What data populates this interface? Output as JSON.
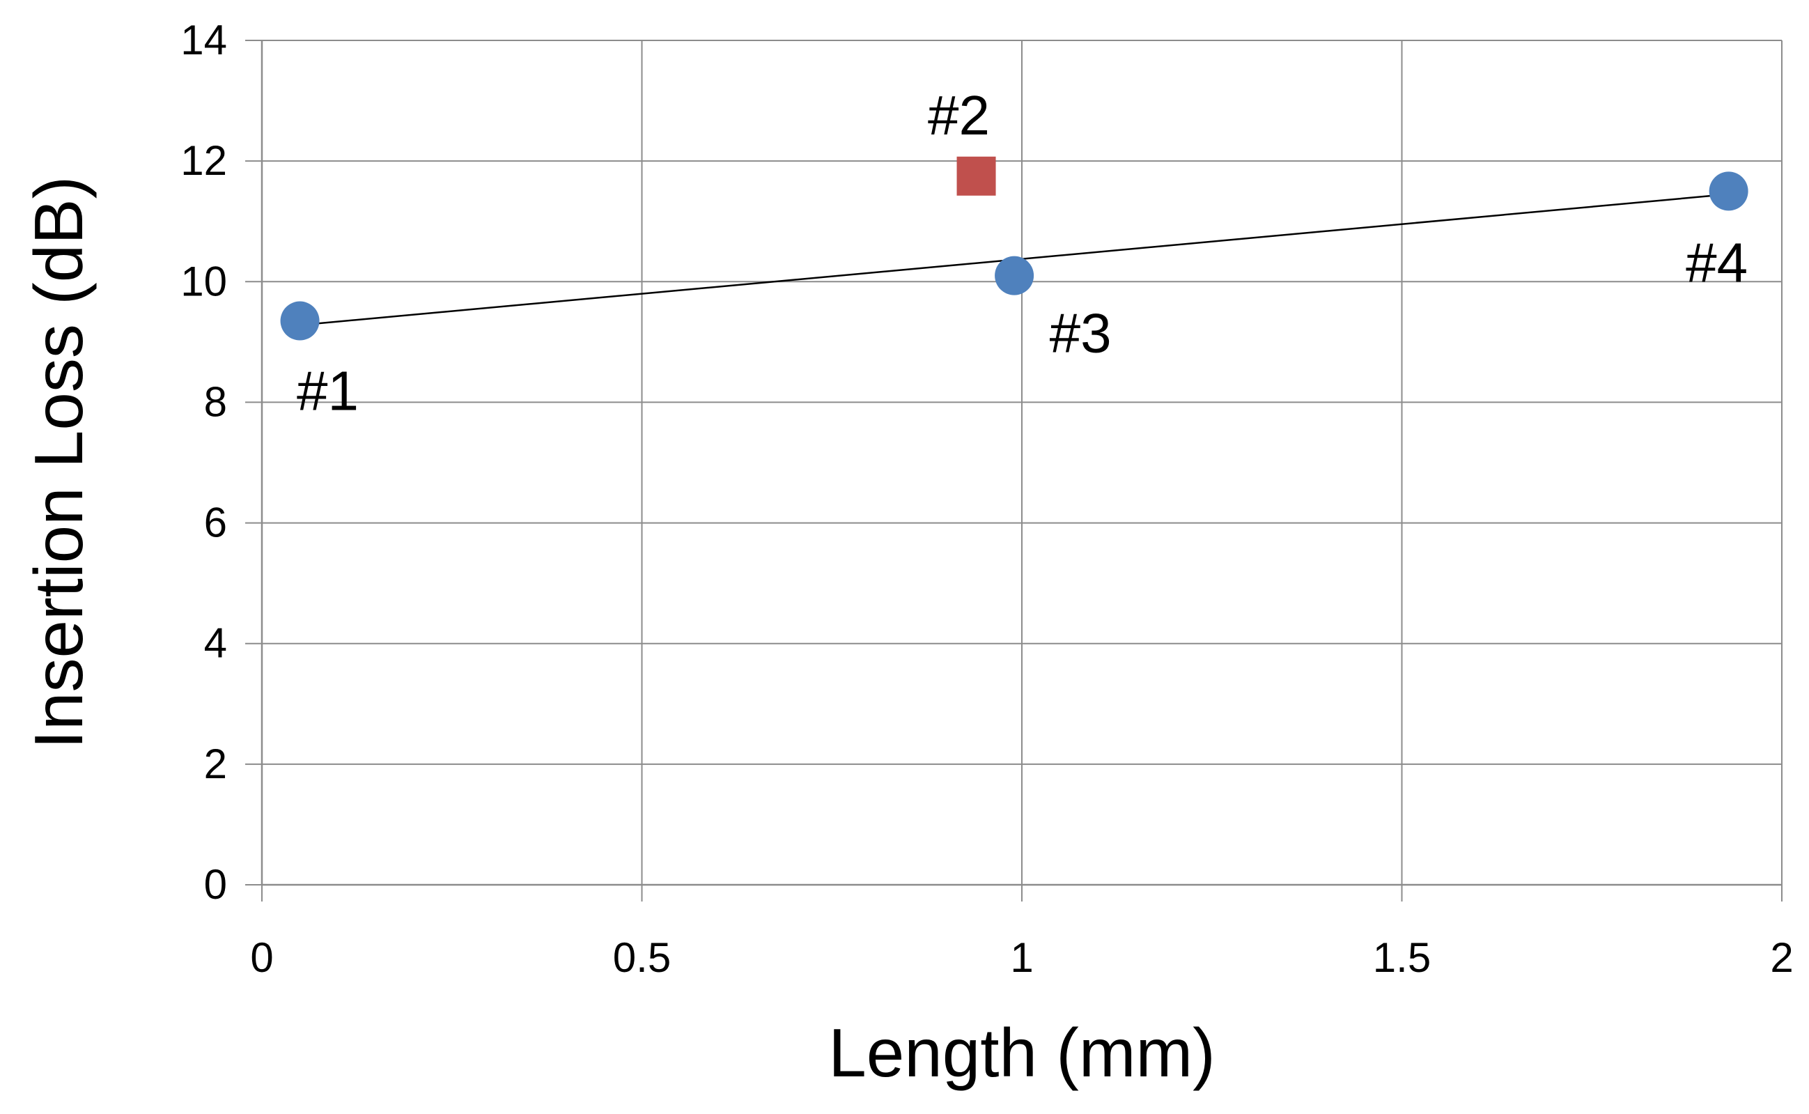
{
  "chart_data": {
    "type": "scatter",
    "title": "",
    "xlabel": "Length (mm)",
    "ylabel": "Insertion Loss (dB)",
    "xlim": [
      0,
      2
    ],
    "ylim": [
      0,
      14
    ],
    "x_ticks": [
      0,
      0.5,
      1,
      1.5,
      2
    ],
    "x_tick_labels": [
      "0",
      "0.5",
      "1",
      "1.5",
      "2"
    ],
    "y_ticks": [
      0,
      2,
      4,
      6,
      8,
      10,
      12,
      14
    ],
    "y_tick_labels": [
      "0",
      "2",
      "4",
      "6",
      "8",
      "10",
      "12",
      "14"
    ],
    "grid": true,
    "legend": false,
    "series": [
      {
        "marker": "circle",
        "color": "#4F81BD",
        "points": [
          {
            "label": "#1",
            "x": 0.05,
            "y": 9.35
          },
          {
            "label": "#3",
            "x": 0.99,
            "y": 10.1
          },
          {
            "label": "#4",
            "x": 1.93,
            "y": 11.5
          }
        ]
      },
      {
        "marker": "square",
        "color": "#C0504D",
        "points": [
          {
            "label": "#2",
            "x": 0.94,
            "y": 11.75
          }
        ]
      }
    ],
    "trendline": {
      "type": "linear",
      "color": "#000000",
      "x": [
        0.05,
        1.93
      ],
      "y": [
        9.28,
        11.45
      ]
    }
  }
}
